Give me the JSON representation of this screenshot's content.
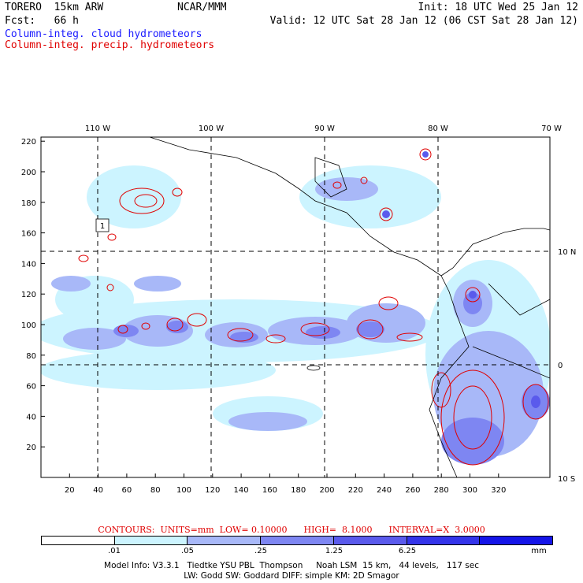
{
  "header": {
    "model": "TORERO  15km ARW",
    "center": "NCAR/MMM",
    "init": "Init: 18 UTC Wed 25 Jan 12",
    "fcst": "Fcst:   66 h",
    "valid": "Valid: 12 UTC Sat 28 Jan 12 (06 CST Sat 28 Jan 12)",
    "field1": "Column-integ. cloud hydrometeors",
    "field2": "Column-integ. precip. hydrometeors"
  },
  "map": {
    "top_lon_labels": [
      "110 W",
      "100 W",
      "90 W",
      "80 W",
      "70 W"
    ],
    "right_lat_labels": [
      "10 N",
      "0",
      "10 S"
    ],
    "x_ticks": [
      "20",
      "40",
      "60",
      "80",
      "100",
      "120",
      "140",
      "160",
      "180",
      "200",
      "220",
      "240",
      "260",
      "280",
      "300",
      "320"
    ],
    "y_ticks": [
      "20",
      "40",
      "60",
      "80",
      "100",
      "120",
      "140",
      "160",
      "180",
      "200",
      "220"
    ],
    "label_box": "1"
  },
  "contours": {
    "label": "CONTOURS:  UNITS=mm  LOW= 0.10000      HIGH=  8.1000      INTERVAL=X  3.0000"
  },
  "colorbar": {
    "colors": [
      "#ffffff",
      "#ccf4ff",
      "#a8b8f8",
      "#7e86f2",
      "#5a5aec",
      "#3434ea",
      "#1414e8"
    ],
    "labels": [
      ".01",
      ".05",
      ".25",
      "1.25",
      "6.25"
    ],
    "unit": "mm"
  },
  "footer": {
    "line1": "Model Info: V3.3.1   Tiedtke YSU PBL  Thompson     Noah LSM  15 km,   44 levels,   117 sec",
    "line2": "LW: Godd SW: Goddard DIFF: simple KM: 2D Smagor"
  }
}
